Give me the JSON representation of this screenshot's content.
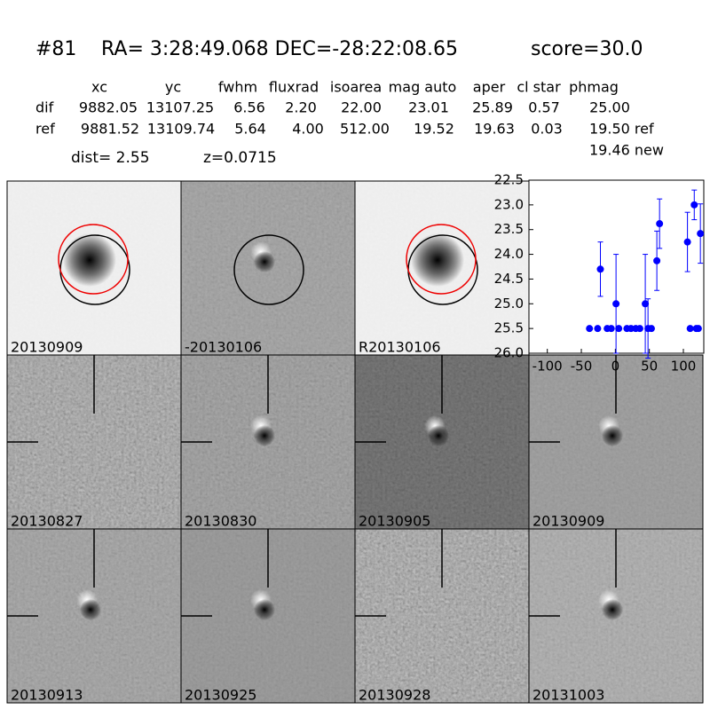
{
  "header": {
    "id": "#81",
    "coords": "RA= 3:28:49.068 DEC=-28:22:08.65",
    "score": "score=30.0",
    "dist": "dist=  2.55",
    "z": "z=0.0715"
  },
  "table": {
    "columns": [
      "xc",
      "yc",
      "fwhm",
      "fluxrad",
      "isoarea",
      "mag auto",
      "aper",
      "cl star",
      "phmag"
    ],
    "rows": [
      [
        "dif",
        "9882.05",
        "13107.25",
        "6.56",
        "2.20",
        "22.00",
        "23.01",
        "25.89",
        "0.57",
        "25.00"
      ],
      [
        "ref",
        "9881.52",
        "13109.74",
        "5.64",
        "4.00",
        "512.00",
        "19.52",
        "19.63",
        "0.03",
        "19.50 ref"
      ]
    ],
    "extra": "19.46 new"
  },
  "stamps": [
    "20130909",
    "-20130106",
    "R20130106",
    "20130827",
    "20130830",
    "20130905",
    "20130909",
    "20130913",
    "20130925",
    "20130928",
    "20131003"
  ],
  "chart_data": {
    "type": "scatter",
    "color": "#0000ff",
    "invert_y": true,
    "x": [
      -38,
      -26,
      -22,
      -12,
      -6,
      1,
      5,
      17,
      23,
      30,
      36,
      44,
      48,
      53,
      61,
      65,
      106,
      110,
      116,
      119,
      122,
      125
    ],
    "values": [
      25.5,
      25.5,
      24.3,
      25.5,
      25.5,
      25.0,
      25.5,
      25.5,
      25.5,
      25.5,
      25.5,
      25.0,
      25.5,
      25.5,
      24.13,
      23.38,
      23.75,
      25.5,
      23.0,
      25.5,
      25.5,
      23.58
    ],
    "errors": [
      null,
      null,
      0.55,
      null,
      null,
      1.0,
      null,
      null,
      null,
      null,
      null,
      1.0,
      0.6,
      null,
      0.6,
      0.5,
      0.6,
      null,
      0.3,
      null,
      null,
      0.6
    ],
    "xlim": [
      -127,
      130
    ],
    "ylim": [
      22.5,
      26.0
    ],
    "xticks": [
      -100,
      -50,
      0,
      50,
      100
    ],
    "yticks": [
      22.5,
      {
        "value": 23,
        "label": "23.0"
      },
      23.5,
      {
        "value": 24,
        "label": "24.0"
      },
      24.5,
      {
        "value": 25,
        "label": "25.0"
      },
      25.5,
      {
        "value": 26,
        "label": "26.0"
      }
    ]
  }
}
